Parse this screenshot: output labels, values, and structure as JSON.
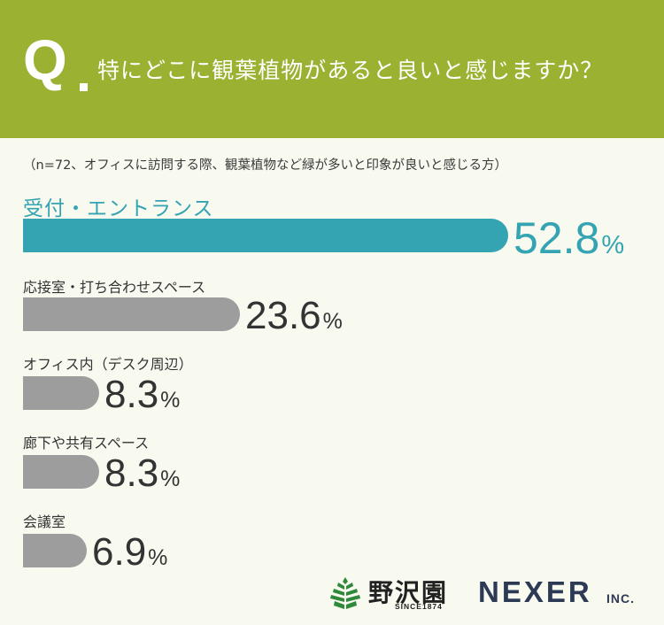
{
  "header": {
    "q_letter": "Q",
    "question": "特にどこに観葉植物があると良いと感じますか？"
  },
  "note": "（n=72、オフィスに訪問する際、観葉植物など緑が多いと印象が良いと感じる方）",
  "chart_data": {
    "type": "bar",
    "orientation": "horizontal",
    "categories": [
      "受付・エントランス",
      "応接室・打ち合わせスペース",
      "オフィス内（デスク周辺）",
      "廊下や共有スペース",
      "会議室"
    ],
    "values": [
      52.8,
      23.6,
      8.3,
      8.3,
      6.9
    ],
    "value_labels": [
      "52.8",
      "23.6",
      "8.3",
      "8.3",
      "6.9"
    ],
    "unit": "%",
    "highlight_index": 0,
    "colors": {
      "highlight": "#34a4b3",
      "default": "#9d9d9d"
    }
  },
  "logos": {
    "nozawa_name": "野沢園",
    "nozawa_since": "SINCE1874",
    "nexer_name": "NEXER",
    "nexer_suffix": "INC."
  },
  "colors": {
    "header": "#9ab132",
    "background": "#f8f9ef",
    "text": "#333333",
    "brand_navy": "#2c3a55"
  }
}
